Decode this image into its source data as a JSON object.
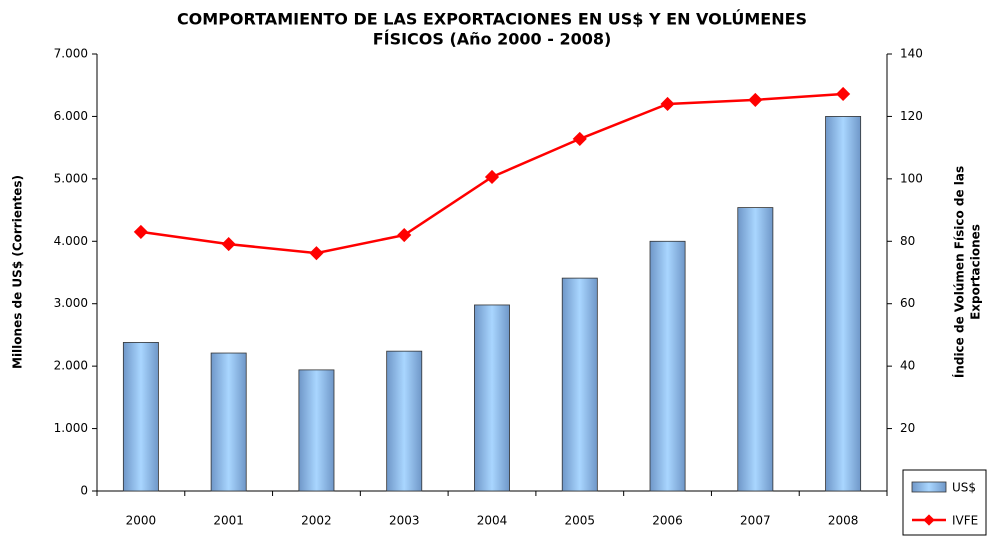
{
  "chart_data": {
    "type": "bar_line",
    "title": [
      "COMPORTAMIENTO DE LAS EXPORTACIONES EN US$ Y EN VOLÚMENES",
      "FÍSICOS (Año 2000 - 2008)"
    ],
    "ylabel": "Millones de US$ (Corrientes)",
    "y2label": [
      "Índice de Volúmen Físico de las",
      "Exportaciones"
    ],
    "categories": [
      "2000",
      "2001",
      "2002",
      "2003",
      "2004",
      "2005",
      "2006",
      "2007",
      "2008"
    ],
    "series": [
      {
        "name": "US$",
        "type": "bar",
        "color": "#6f97c8",
        "values": [
          2380,
          2210,
          1940,
          2240,
          2980,
          3410,
          4000,
          4540,
          6000
        ]
      },
      {
        "name": "IVFE",
        "type": "line",
        "axis": "y2",
        "color": "#ff0000",
        "values": [
          83.0,
          79.1,
          76.2,
          82.0,
          100.6,
          112.8,
          124.0,
          125.3,
          127.2
        ]
      }
    ],
    "ylim": [
      0,
      7000
    ],
    "yticks": [
      0,
      {
        "value": 1000,
        "label": "1.000"
      },
      {
        "value": 2000,
        "label": "2.000"
      },
      {
        "value": 3000,
        "label": "3.000"
      },
      {
        "value": 4000,
        "label": "4.000"
      },
      {
        "value": 5000,
        "label": "5.000"
      },
      {
        "value": 6000,
        "label": "6.000"
      },
      {
        "value": 7000,
        "label": "7.000"
      }
    ],
    "y2lim": [
      0,
      140
    ],
    "y2ticks": [
      20,
      40,
      60,
      80,
      100,
      120,
      140
    ],
    "legend": "lower right"
  }
}
